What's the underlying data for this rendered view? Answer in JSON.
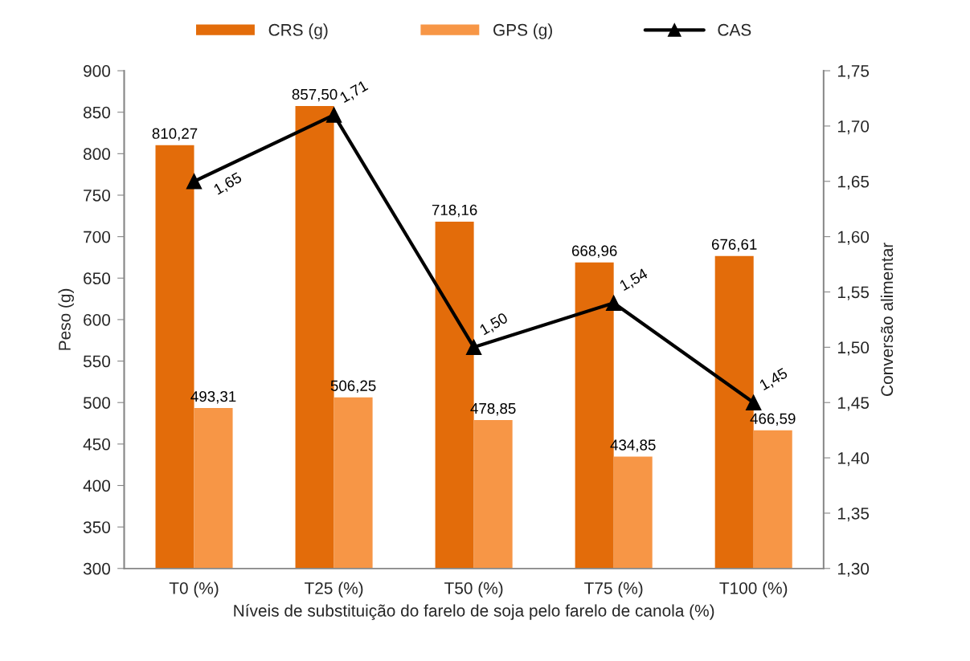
{
  "chart_data": {
    "type": "bar",
    "categories": [
      "T0 (%)",
      "T25 (%)",
      "T50 (%)",
      "T75 (%)",
      "T100 (%)"
    ],
    "xlabel": "Níveis de substituição do farelo de soja pelo farelo de canola (%)",
    "ylabel": "Peso (g)",
    "y2label": "Conversão alimentar",
    "series": [
      {
        "name": "CRS (g)",
        "color": "#e36c0a",
        "values": [
          810.27,
          857.5,
          718.16,
          668.96,
          676.61
        ],
        "value_labels": [
          "810,27",
          "857,50",
          "718,16",
          "668,96",
          "676,61"
        ]
      },
      {
        "name": "GPS (g)",
        "color": "#f79646",
        "values": [
          493.31,
          506.25,
          478.85,
          434.85,
          466.59
        ],
        "value_labels": [
          "493,31",
          "506,25",
          "478,85",
          "434,85",
          "466,59"
        ]
      },
      {
        "name": "CAS",
        "type": "line",
        "axis": "y2",
        "color": "#000000",
        "marker": "triangle",
        "values": [
          1.65,
          1.71,
          1.5,
          1.54,
          1.45
        ],
        "value_labels": [
          "1,65",
          "1,71",
          "1,50",
          "1,54",
          "1,45"
        ]
      }
    ],
    "ylim": [
      300,
      900
    ],
    "yticks": [
      300,
      350,
      400,
      450,
      500,
      550,
      600,
      650,
      700,
      750,
      800,
      850,
      900
    ],
    "y2lim": [
      1.3,
      1.75
    ],
    "y2ticks": [
      {
        "value": 1.3,
        "label": "1,30"
      },
      {
        "value": 1.35,
        "label": "1,35"
      },
      {
        "value": 1.4,
        "label": "1,40"
      },
      {
        "value": 1.45,
        "label": "1,45"
      },
      {
        "value": 1.5,
        "label": "1,50"
      },
      {
        "value": 1.55,
        "label": "1,55"
      },
      {
        "value": 1.6,
        "label": "1,60"
      },
      {
        "value": 1.65,
        "label": "1,65"
      },
      {
        "value": 1.7,
        "label": "1,70"
      },
      {
        "value": 1.75,
        "label": "1,75"
      }
    ],
    "legend": "top"
  }
}
